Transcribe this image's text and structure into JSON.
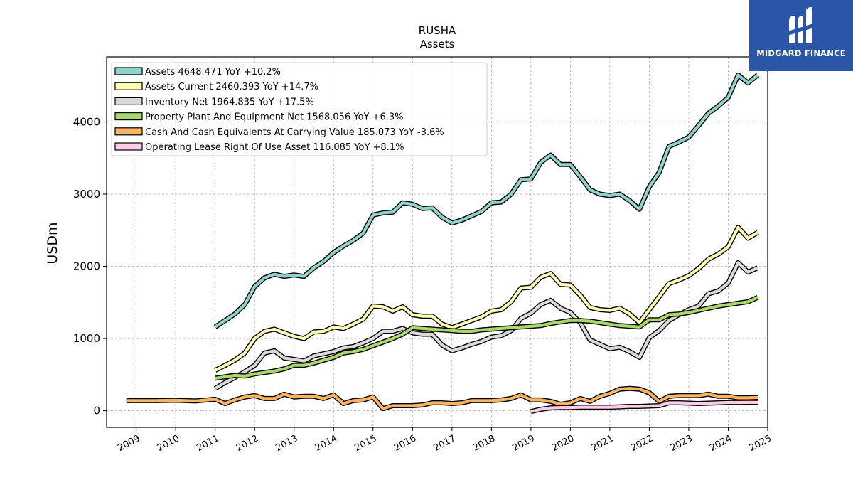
{
  "brand": {
    "name": "MIDGARD FINANCE",
    "bg_color": "#2b55a6"
  },
  "chart_data": {
    "type": "line",
    "title": "RUSHA",
    "subtitle": "Assets",
    "ylabel": "USDm",
    "xlabel": "",
    "xlim": [
      2008.25,
      2025.0
    ],
    "ylim": [
      -230,
      4900
    ],
    "grid": true,
    "legend_position": "top-left",
    "x_ticks": [
      2009,
      2010,
      2011,
      2012,
      2013,
      2014,
      2015,
      2016,
      2017,
      2018,
      2019,
      2020,
      2021,
      2022,
      2023,
      2024,
      2025
    ],
    "y_ticks": [
      0,
      1000,
      2000,
      3000,
      4000
    ],
    "series": [
      {
        "name": "Assets",
        "legend": "Assets  4648.471 YoY +10.2%",
        "color": "#8dd3c7",
        "x": [
          2011.0,
          2011.25,
          2011.5,
          2011.75,
          2012.0,
          2012.25,
          2012.5,
          2012.75,
          2013.0,
          2013.25,
          2013.5,
          2013.75,
          2014.0,
          2014.25,
          2014.5,
          2014.75,
          2015.0,
          2015.25,
          2015.5,
          2015.75,
          2016.0,
          2016.25,
          2016.5,
          2016.75,
          2017.0,
          2017.25,
          2017.5,
          2017.75,
          2018.0,
          2018.25,
          2018.5,
          2018.75,
          2019.0,
          2019.25,
          2019.5,
          2019.75,
          2020.0,
          2020.25,
          2020.5,
          2020.75,
          2021.0,
          2021.25,
          2021.5,
          2021.75,
          2022.0,
          2022.25,
          2022.5,
          2022.75,
          2023.0,
          2023.25,
          2023.5,
          2023.75,
          2024.0,
          2024.25,
          2024.5,
          2024.75
        ],
        "y": [
          1160,
          1250,
          1340,
          1470,
          1720,
          1840,
          1890,
          1860,
          1880,
          1860,
          1980,
          2070,
          2190,
          2280,
          2360,
          2460,
          2710,
          2740,
          2750,
          2880,
          2860,
          2800,
          2810,
          2680,
          2600,
          2640,
          2700,
          2760,
          2880,
          2890,
          3000,
          3200,
          3210,
          3440,
          3540,
          3410,
          3410,
          3240,
          3060,
          3000,
          2980,
          3000,
          2910,
          2790,
          3100,
          3300,
          3660,
          3720,
          3790,
          3950,
          4120,
          4220,
          4340,
          4650,
          4540,
          4650
        ]
      },
      {
        "name": "Assets Current",
        "legend": "Assets Current  2460.393 YoY +14.7%",
        "color": "#ffffb3",
        "x": [
          2011.0,
          2011.25,
          2011.5,
          2011.75,
          2012.0,
          2012.25,
          2012.5,
          2012.75,
          2013.0,
          2013.25,
          2013.5,
          2013.75,
          2014.0,
          2014.25,
          2014.5,
          2014.75,
          2015.0,
          2015.25,
          2015.5,
          2015.75,
          2016.0,
          2016.25,
          2016.5,
          2016.75,
          2017.0,
          2017.25,
          2017.5,
          2017.75,
          2018.0,
          2018.25,
          2018.5,
          2018.75,
          2019.0,
          2019.25,
          2019.5,
          2019.75,
          2020.0,
          2020.25,
          2020.5,
          2020.75,
          2021.0,
          2021.25,
          2021.5,
          2021.75,
          2022.0,
          2022.25,
          2022.5,
          2022.75,
          2023.0,
          2023.25,
          2023.5,
          2023.75,
          2024.0,
          2024.25,
          2024.5,
          2024.75
        ],
        "y": [
          560,
          630,
          700,
          800,
          1000,
          1100,
          1130,
          1080,
          1030,
          1000,
          1090,
          1100,
          1160,
          1140,
          1200,
          1270,
          1450,
          1440,
          1380,
          1440,
          1330,
          1310,
          1310,
          1200,
          1150,
          1200,
          1250,
          1300,
          1380,
          1400,
          1510,
          1700,
          1710,
          1850,
          1900,
          1750,
          1740,
          1600,
          1430,
          1400,
          1390,
          1420,
          1340,
          1220,
          1400,
          1580,
          1760,
          1810,
          1870,
          1970,
          2100,
          2170,
          2270,
          2540,
          2390,
          2470
        ]
      },
      {
        "name": "Inventory Net",
        "legend": "Inventory Net  1964.835 YoY +17.5%",
        "color": "#d9d9d9",
        "x": [
          2011.0,
          2011.25,
          2011.5,
          2011.75,
          2012.0,
          2012.25,
          2012.5,
          2012.75,
          2013.0,
          2013.25,
          2013.5,
          2013.75,
          2014.0,
          2014.25,
          2014.5,
          2014.75,
          2015.0,
          2015.25,
          2015.5,
          2015.75,
          2016.0,
          2016.25,
          2016.5,
          2016.75,
          2017.0,
          2017.25,
          2017.5,
          2017.75,
          2018.0,
          2018.25,
          2018.5,
          2018.75,
          2019.0,
          2019.25,
          2019.5,
          2019.75,
          2020.0,
          2020.25,
          2020.5,
          2020.75,
          2021.0,
          2021.25,
          2021.5,
          2021.75,
          2022.0,
          2022.25,
          2022.5,
          2022.75,
          2023.0,
          2023.25,
          2023.5,
          2023.75,
          2024.0,
          2024.25,
          2024.5,
          2024.75
        ],
        "y": [
          310,
          390,
          460,
          540,
          630,
          800,
          830,
          730,
          710,
          690,
          760,
          790,
          820,
          870,
          890,
          940,
          1000,
          1100,
          1100,
          1140,
          1080,
          1060,
          1060,
          910,
          830,
          870,
          920,
          960,
          1020,
          1040,
          1110,
          1280,
          1350,
          1470,
          1530,
          1420,
          1360,
          1220,
          980,
          920,
          860,
          880,
          820,
          740,
          1010,
          1110,
          1250,
          1330,
          1400,
          1450,
          1620,
          1660,
          1770,
          2050,
          1920,
          1980
        ]
      },
      {
        "name": "Property Plant And Equipment Net",
        "legend": "Property Plant And Equipment Net  1568.056 YoY +6.3%",
        "color": "#a6d96a",
        "x": [
          2011.0,
          2011.25,
          2011.5,
          2011.75,
          2012.0,
          2012.25,
          2012.5,
          2012.75,
          2013.0,
          2013.25,
          2013.5,
          2013.75,
          2014.0,
          2014.25,
          2014.5,
          2014.75,
          2015.0,
          2015.25,
          2015.5,
          2015.75,
          2016.0,
          2016.25,
          2016.5,
          2016.75,
          2017.0,
          2017.25,
          2017.5,
          2017.75,
          2018.0,
          2018.25,
          2018.5,
          2018.75,
          2019.0,
          2019.25,
          2019.5,
          2019.75,
          2020.0,
          2020.25,
          2020.5,
          2020.75,
          2021.0,
          2021.25,
          2021.5,
          2021.75,
          2022.0,
          2022.25,
          2022.5,
          2022.75,
          2023.0,
          2023.25,
          2023.5,
          2023.75,
          2024.0,
          2024.25,
          2024.5,
          2024.75
        ],
        "y": [
          450,
          470,
          490,
          480,
          510,
          530,
          550,
          580,
          630,
          630,
          660,
          700,
          740,
          800,
          820,
          850,
          900,
          950,
          1000,
          1060,
          1150,
          1140,
          1130,
          1120,
          1110,
          1100,
          1100,
          1120,
          1130,
          1140,
          1150,
          1160,
          1170,
          1180,
          1210,
          1230,
          1250,
          1250,
          1240,
          1220,
          1200,
          1180,
          1170,
          1160,
          1260,
          1260,
          1330,
          1340,
          1360,
          1390,
          1420,
          1450,
          1470,
          1490,
          1510,
          1570
        ]
      },
      {
        "name": "Cash And Cash Equivalents At Carrying Value",
        "legend": "Cash And Cash Equivalents At Carrying Value  185.073 YoY -3.6%",
        "color": "#fdb462",
        "x": [
          2008.75,
          2009.0,
          2009.5,
          2010.0,
          2010.5,
          2011.0,
          2011.25,
          2011.5,
          2011.75,
          2012.0,
          2012.25,
          2012.5,
          2012.75,
          2013.0,
          2013.25,
          2013.5,
          2013.75,
          2014.0,
          2014.25,
          2014.5,
          2014.75,
          2015.0,
          2015.25,
          2015.5,
          2015.75,
          2016.0,
          2016.25,
          2016.5,
          2016.75,
          2017.0,
          2017.25,
          2017.5,
          2017.75,
          2018.0,
          2018.25,
          2018.5,
          2018.75,
          2019.0,
          2019.25,
          2019.5,
          2019.75,
          2020.0,
          2020.25,
          2020.5,
          2020.75,
          2021.0,
          2021.25,
          2021.5,
          2021.75,
          2022.0,
          2022.25,
          2022.5,
          2022.75,
          2023.0,
          2023.25,
          2023.5,
          2023.75,
          2024.0,
          2024.25,
          2024.5,
          2024.75
        ],
        "y": [
          140,
          140,
          140,
          145,
          135,
          160,
          100,
          150,
          190,
          210,
          170,
          170,
          230,
          190,
          200,
          200,
          170,
          220,
          100,
          140,
          150,
          190,
          30,
          70,
          70,
          70,
          80,
          110,
          110,
          100,
          110,
          140,
          140,
          140,
          150,
          170,
          220,
          150,
          150,
          130,
          90,
          110,
          170,
          130,
          200,
          240,
          300,
          310,
          300,
          250,
          130,
          200,
          210,
          210,
          210,
          230,
          200,
          200,
          180,
          180,
          185
        ]
      },
      {
        "name": "Operating Lease Right Of Use Asset",
        "legend": "Operating Lease Right Of Use Asset  116.085 YoY +8.1%",
        "color": "#fccde5",
        "x": [
          2019.0,
          2019.25,
          2019.5,
          2019.75,
          2020.0,
          2020.25,
          2020.5,
          2020.75,
          2021.0,
          2021.25,
          2021.5,
          2021.75,
          2022.0,
          2022.25,
          2022.5,
          2022.75,
          2023.0,
          2023.25,
          2023.5,
          2023.75,
          2024.0,
          2024.25,
          2024.5,
          2024.75
        ],
        "y": [
          -10,
          20,
          40,
          45,
          45,
          50,
          50,
          50,
          50,
          55,
          60,
          60,
          65,
          70,
          110,
          110,
          105,
          100,
          105,
          110,
          115,
          115,
          116,
          116
        ]
      }
    ]
  }
}
